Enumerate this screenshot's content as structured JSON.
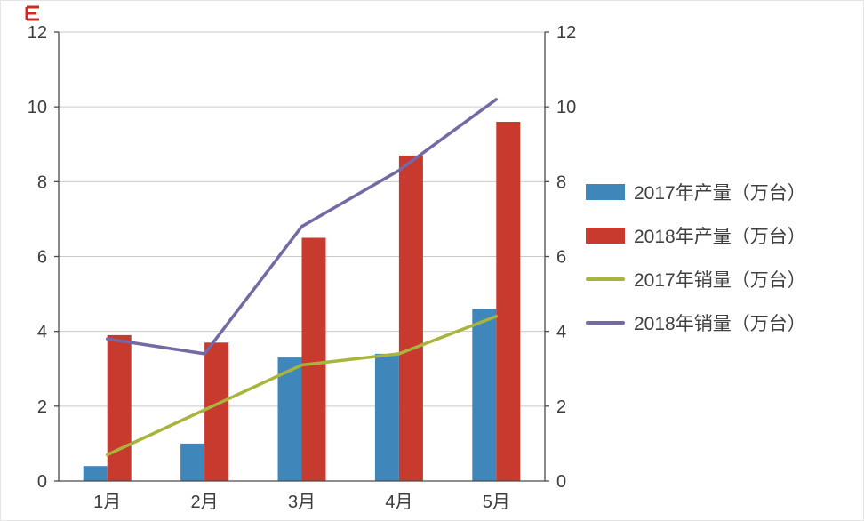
{
  "corner_mark": {
    "color": "#cf2b23"
  },
  "axes": {
    "left_color": "#4a4a4a",
    "right_color": "#4a4a4a",
    "grid_color": "#c9c9c9"
  },
  "chart_data": {
    "type": "bar",
    "categories": [
      "1月",
      "2月",
      "3月",
      "4月",
      "5月"
    ],
    "y_ticks": [
      0,
      2,
      4,
      6,
      8,
      10,
      12
    ],
    "ylim": [
      0,
      12
    ],
    "grid": true,
    "legend_position": "right",
    "secondary_axis": true,
    "series": [
      {
        "name": "2017年产量（万台）",
        "kind": "bar",
        "color": "#3f87ba",
        "values": [
          0.4,
          1.0,
          3.3,
          3.4,
          4.6
        ]
      },
      {
        "name": "2018年产量（万台）",
        "kind": "bar",
        "color": "#c8392e",
        "values": [
          3.9,
          3.7,
          6.5,
          8.7,
          9.6
        ]
      },
      {
        "name": "2017年销量（万台）",
        "kind": "line",
        "color": "#a8b43c",
        "values": [
          0.7,
          1.9,
          3.1,
          3.4,
          4.4
        ]
      },
      {
        "name": "2018年销量（万台）",
        "kind": "line",
        "color": "#7568a5",
        "values": [
          3.8,
          3.4,
          6.8,
          8.3,
          10.2
        ]
      }
    ]
  }
}
